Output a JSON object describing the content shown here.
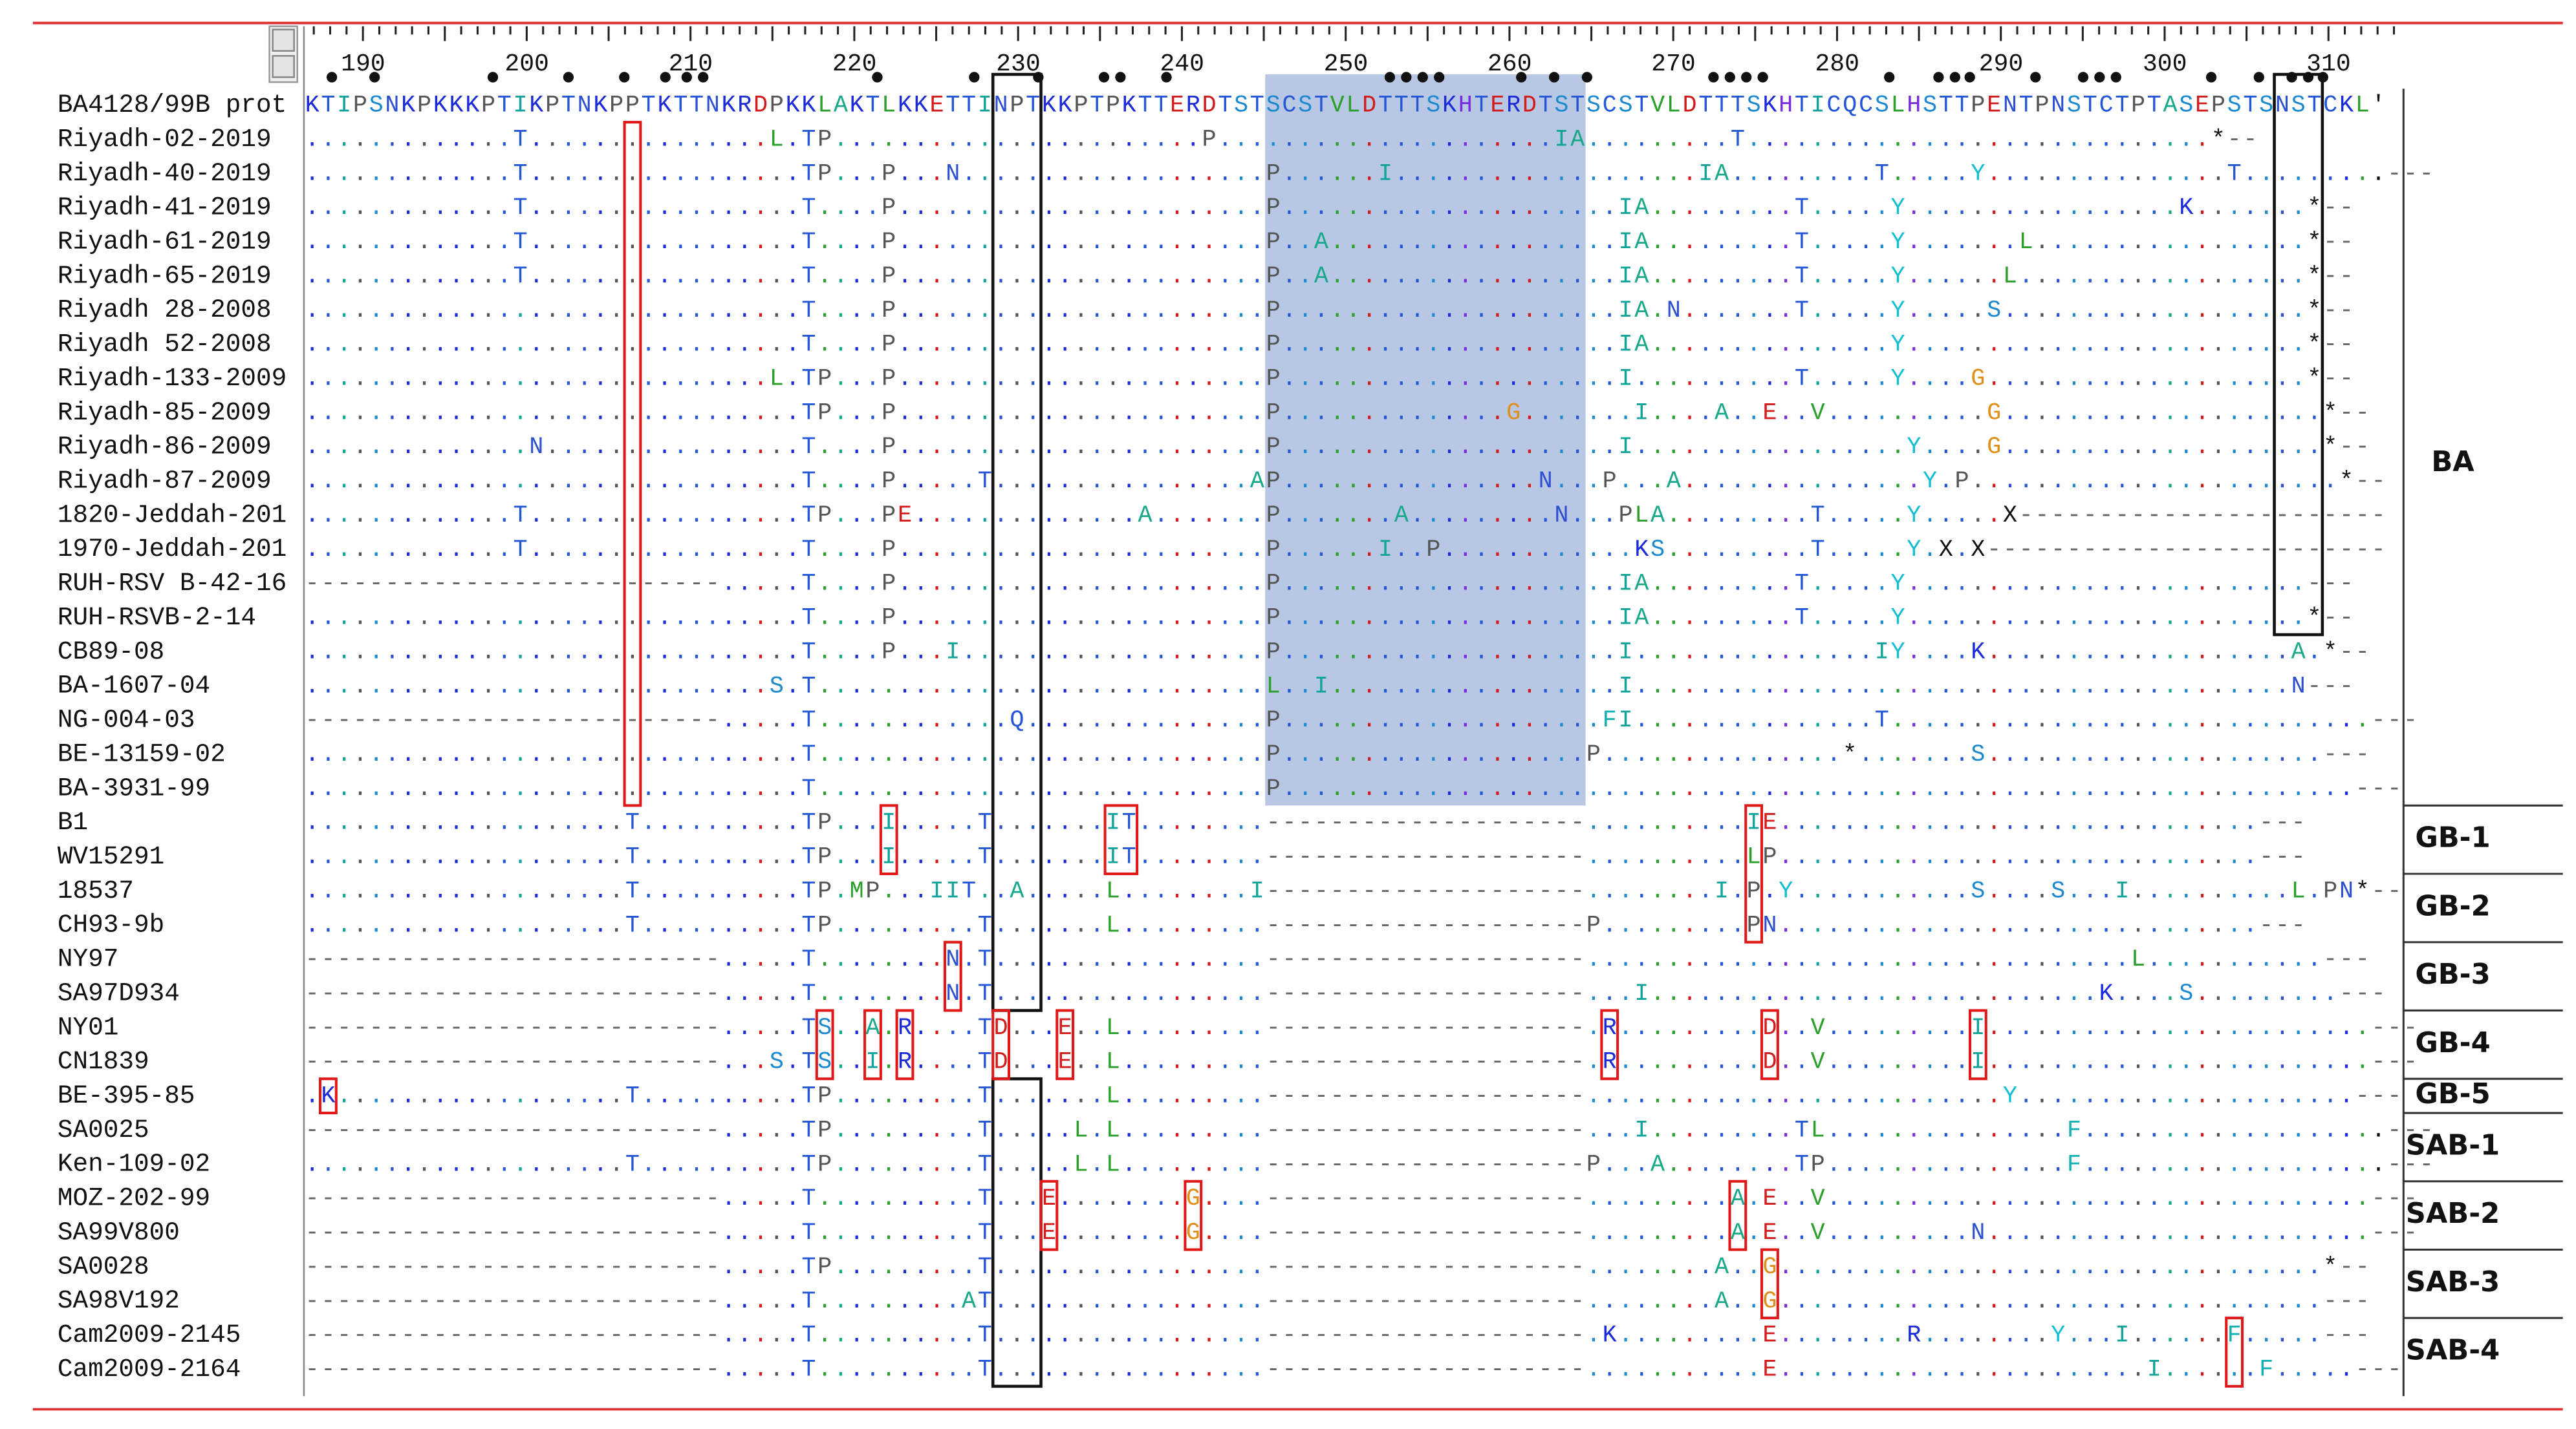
{
  "ruler": [
    190,
    200,
    210,
    220,
    230,
    240,
    250,
    260,
    270,
    280,
    290,
    300,
    310
  ],
  "reference": {
    "name": "BA4128/99B prot",
    "sequence": "KTIPSNKPKKKPTIKPTNKPPTKTTNKRDPKKLAKTLKKETTINPTKKPTPKTTERDTSTSCSTVLDTTTSKHTERDTSTSCSTVLDTTTSKHTICQCSLHSTTPENTPNSTCTPTASEPSTSNSTCKL'"
  },
  "groups": [
    {
      "label": "BA",
      "sequences": [
        {
          "name": "Riyadh-02-2019",
          "sequence": ".............T...............L.TP.......................P.....................IA.........T.............................*--"
        },
        {
          "name": "Riyadh-40-2019",
          "sequence": ".............T.................TP...P...N...................P......I...................IA.........T.....Y...............T.........---"
        },
        {
          "name": "Riyadh-41-2019",
          "sequence": ".............T.................T....P.......................P.....................IA.........T.....Y.................K.......*--"
        },
        {
          "name": "Riyadh-61-2019",
          "sequence": ".............T.................T....P.......................P..A..................IA.........T.....Y.......L.................*--"
        },
        {
          "name": "Riyadh-65-2019",
          "sequence": ".............T.................T....P.......................P..A..................IA.........T.....Y......L..................*--"
        },
        {
          "name": "Riyadh 28-2008",
          "sequence": "...............................T....P.......................P.....................IA.N.......T.....Y.....S...................*--"
        },
        {
          "name": "Riyadh 52-2008",
          "sequence": "...............................T....P.......................P.....................IA...............Y.........................*--"
        },
        {
          "name": "Riyadh-133-2009",
          "sequence": ".............................L.TP...P.......................P.....................I..........T.....Y....G....................*--"
        },
        {
          "name": "Riyadh-85-2009",
          "sequence": "...............................TP...P.......................P..............G.......I....A..E..V..........G....................*--"
        },
        {
          "name": "Riyadh-86-2009",
          "sequence": "..............N................T....P.......................P.....................I.................Y....G....................*--"
        },
        {
          "name": "Riyadh-87-2009",
          "sequence": "...............................T....P.....T................AP................N...P...A...............Y.P.......................*--"
        },
        {
          "name": "1820-Jeddah-201",
          "sequence": ".............T.................TP...PE..............A.......P.......A.........N...PLA.........T.....Y.....X-----------------------"
        },
        {
          "name": "1970-Jeddah-201",
          "sequence": ".............T.................T....P.......................P......I..P............KS.........T.....Y.X.X-------------------------"
        },
        {
          "name": "RUH-RSV B-42-16",
          "sequence": "--------------------------.....T....P.......................P.....................IA.........T.....Y.........................---"
        },
        {
          "name": "RUH-RSVB-2-14",
          "sequence": "...............................T....P.......................P.....................IA.........T.....Y.........................*--"
        },
        {
          "name": "CB89-08",
          "sequence": "...............................T....P...I...................P.....................I...............IY....K...................A.*--"
        },
        {
          "name": "BA-1607-04",
          "sequence": ".............................S.T............................L..I..................I.........................................N---"
        },
        {
          "name": "NG-004-03",
          "sequence": "--------------------------.....T............Q...............P....................FI...............T..............................---"
        },
        {
          "name": "BE-13159-02",
          "sequence": "...............................T............................P...................P...............*.......S.....................---"
        },
        {
          "name": "BA-3931-99",
          "sequence": "...............................T............................P...................................................................---"
        }
      ]
    },
    {
      "label": "GB-1",
      "sequences": [
        {
          "name": "B1",
          "sequence": "....................T..........TP...I.....T.......IT........--------------------..........IE..............................---"
        },
        {
          "name": "WV15291",
          "sequence": "....................T..........TP...I.....T.......IT........--------------------..........LP..............................---"
        }
      ]
    },
    {
      "label": "GB-2",
      "sequences": [
        {
          "name": "18537",
          "sequence": "....................T..........TP.MP...IIT..A.....L........I--------------------........I.P.Y...........S....S...I..........L.PN*--"
        },
        {
          "name": "CH93-9b",
          "sequence": "....................T..........TP.........T.......L.........--------------------P.........PN..............................---"
        }
      ]
    },
    {
      "label": "GB-3",
      "sequences": [
        {
          "name": "NY97",
          "sequence": "--------------------------.....T........N.T.................--------------------..................................L...........---"
        },
        {
          "name": "SA97D934",
          "sequence": "--------------------------.....T........N.T.................--------------------...I............................K....S.........---"
        }
      ]
    },
    {
      "label": "GB-4",
      "sequences": [
        {
          "name": "NY01",
          "sequence": "--------------------------.....TS..A.R....TD...E..L.........--------------------.R.........D..V.........I........................---"
        },
        {
          "name": "CN1839",
          "sequence": "--------------------------...S.TS..I.R....TD...E..L.........--------------------.R.........D..V.........I........................---"
        }
      ]
    },
    {
      "label": "GB-5",
      "sequences": [
        {
          "name": "BE-395-85",
          "sequence": ".K..................T..........TP.........T.......L.........--------------------..........................Y.....................---"
        }
      ]
    },
    {
      "label": "SAB-1",
      "sequences": [
        {
          "name": "SA0025",
          "sequence": "--------------------------.....TP.........T.....L.L.........--------------------...I.........TL...............F...................---"
        },
        {
          "name": "Ken-109-02",
          "sequence": "....................T..........TP.........T.....L.L.........--------------------P...A........TP...............F...................---"
        }
      ]
    },
    {
      "label": "SAB-2",
      "sequences": [
        {
          "name": "MOZ-202-99",
          "sequence": "--------------------------.....T..........T...E........G....--------------------.........A.E..V..................................---"
        },
        {
          "name": "SA99V800",
          "sequence": "--------------------------.....T..........T...E........G....--------------------.........A.E..V.........N........................---"
        }
      ]
    },
    {
      "label": "SAB-3",
      "sequences": [
        {
          "name": "SA0028",
          "sequence": "--------------------------.....TP.........T.................--------------------........A..G..................................*--"
        },
        {
          "name": "SA98V192",
          "sequence": "--------------------------.....T.........AT.................--------------------........A..G..................................---"
        }
      ]
    },
    {
      "label": "SAB-4",
      "sequences": [
        {
          "name": "Cam2009-2145",
          "sequence": "--------------------------.....T..........T.................--------------------.K.........E........R........Y...I......F.....---"
        },
        {
          "name": "Cam2009-2164",
          "sequence": "--------------------------.....T..........T.................--------------------...........E.......................I......F.....---"
        }
      ]
    }
  ]
}
